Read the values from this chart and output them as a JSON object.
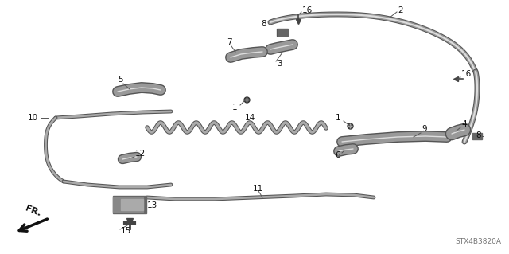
{
  "part_number": "STX4B3820A",
  "background_color": "#ffffff",
  "fig_width": 6.4,
  "fig_height": 3.19,
  "dpi": 100,
  "font_size": 7.5,
  "text_color": "#111111",
  "line_color": "#444444"
}
